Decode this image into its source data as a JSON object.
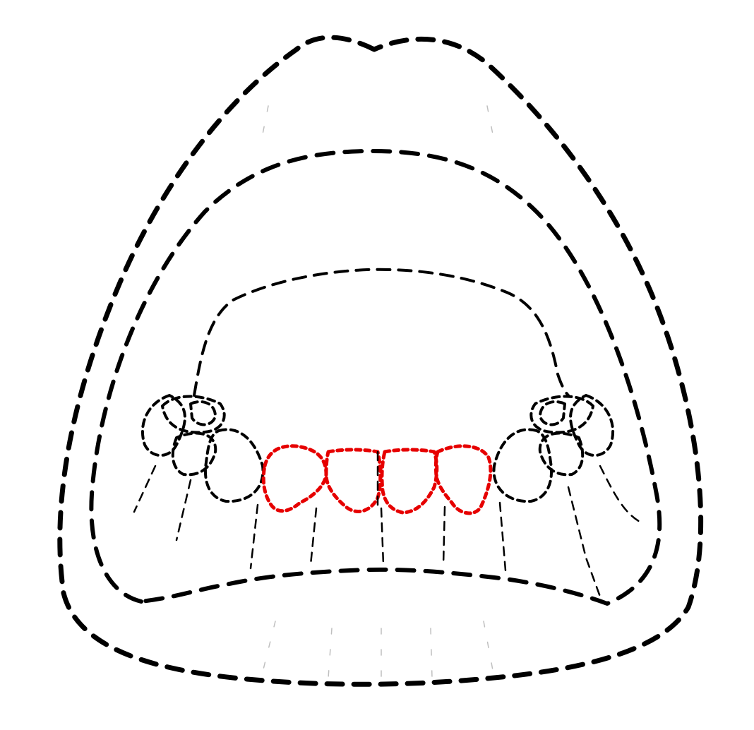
{
  "colors": {
    "outline": "#000000",
    "highlight": "#e60000",
    "background": "#ffffff"
  },
  "diagram": {
    "structures": [
      "outer-lip-outline",
      "inner-lip-outline",
      "palate-outline",
      "left-molars",
      "right-molars",
      "upper-incisors-highlighted",
      "lower-lip-line"
    ]
  }
}
